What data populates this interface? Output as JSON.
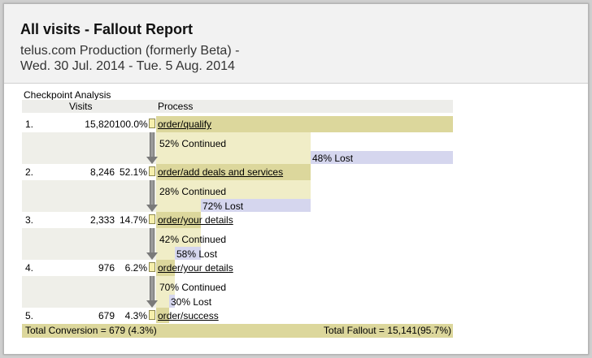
{
  "report": {
    "title": "All visits - Fallout Report",
    "site": "telus.com Production (formerly Beta) -",
    "date_range": "Wed. 30 Jul. 2014 - Tue.  5 Aug. 2014"
  },
  "table": {
    "caption": "Checkpoint Analysis",
    "col_visits": "Visits",
    "col_process": "Process"
  },
  "checkpoints": [
    {
      "num": "1.",
      "visits": "15,820",
      "pct": "100.0%",
      "page": "order/qualify"
    },
    {
      "num": "2.",
      "visits": "8,246",
      "pct": "52.1%",
      "page": "order/add deals and services"
    },
    {
      "num": "3.",
      "visits": "2,333",
      "pct": "14.7%",
      "page": "order/your details"
    },
    {
      "num": "4.",
      "visits": "976",
      "pct": "6.2%",
      "page": "order/your details"
    },
    {
      "num": "5.",
      "visits": "679",
      "pct": "4.3%",
      "page": "order/success"
    }
  ],
  "transitions": [
    {
      "continued": "52% Continued",
      "lost": "48% Lost"
    },
    {
      "continued": "28% Continued",
      "lost": "72% Lost"
    },
    {
      "continued": "42% Continued",
      "lost": "58% Lost"
    },
    {
      "continued": "70% Continued",
      "lost": "30% Lost"
    }
  ],
  "footer": {
    "conversion": "Total Conversion = 679 (4.3%)",
    "fallout": "Total Fallout = 15,141(95.7%)"
  },
  "colors": {
    "checkpoint_bar": "#dcd79c",
    "continued_bar": "#f0edc7",
    "lost_bar": "#d5d6ee"
  }
}
